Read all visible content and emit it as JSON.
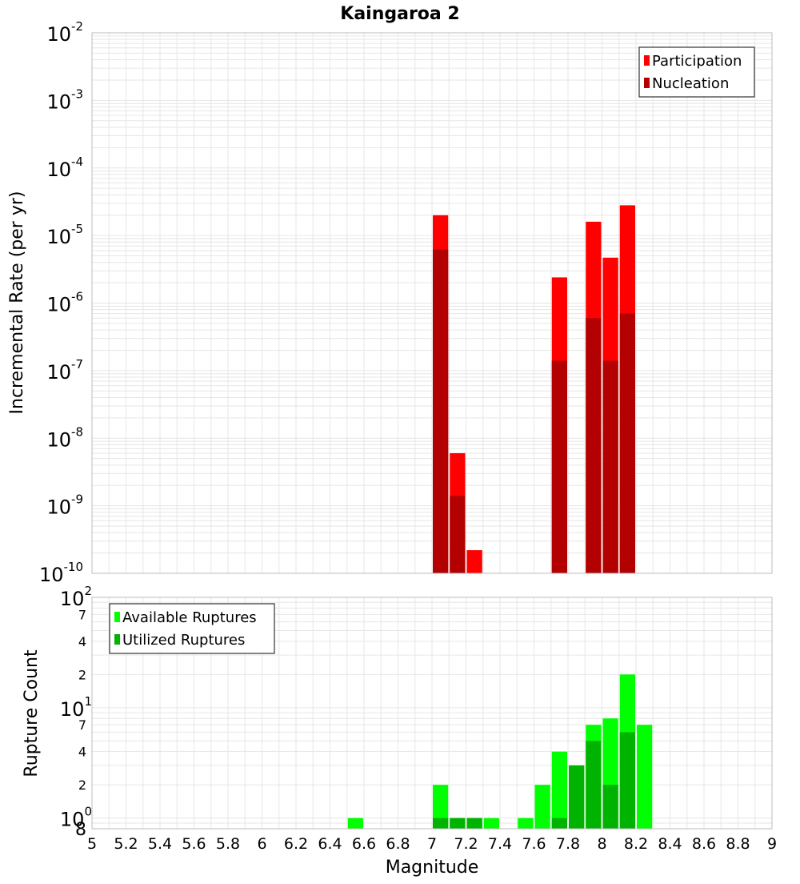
{
  "title": "Kaingaroa 2",
  "xlabel": "Magnitude",
  "colors": {
    "participation": "#ff0000",
    "nucleation": "#b30000",
    "available": "#00ff00",
    "utilized": "#00b300",
    "grid": "#e6e6e6",
    "frame": "#bdbdbd"
  },
  "chart_data": [
    {
      "type": "bar",
      "title": "Kaingaroa 2",
      "xlabel": "",
      "ylabel": "Incremental Rate (per yr)",
      "yscale": "log",
      "xlim": [
        5,
        9
      ],
      "ylim": [
        1e-10,
        0.01
      ],
      "grid": true,
      "legend_position": "top-right",
      "bin_width": 0.1,
      "y_tick_labels": [
        {
          "base": "10",
          "exp": "-10",
          "value": 1e-10
        },
        {
          "base": "10",
          "exp": "-9",
          "value": 1e-09
        },
        {
          "base": "10",
          "exp": "-8",
          "value": 1e-08
        },
        {
          "base": "10",
          "exp": "-7",
          "value": 1e-07
        },
        {
          "base": "10",
          "exp": "-6",
          "value": 1e-06
        },
        {
          "base": "10",
          "exp": "-5",
          "value": 1e-05
        },
        {
          "base": "10",
          "exp": "-4",
          "value": 0.0001
        },
        {
          "base": "10",
          "exp": "-3",
          "value": 0.001
        },
        {
          "base": "10",
          "exp": "-2",
          "value": 0.01
        }
      ],
      "series": [
        {
          "name": "Participation",
          "color": "#ff0000",
          "points": [
            {
              "x": 7.05,
              "y": 2e-05
            },
            {
              "x": 7.15,
              "y": 6e-09
            },
            {
              "x": 7.25,
              "y": 2.2e-10
            },
            {
              "x": 7.75,
              "y": 2.4e-06
            },
            {
              "x": 7.95,
              "y": 1.6e-05
            },
            {
              "x": 8.05,
              "y": 4.7e-06
            },
            {
              "x": 8.15,
              "y": 2.8e-05
            }
          ]
        },
        {
          "name": "Nucleation",
          "color": "#b30000",
          "points": [
            {
              "x": 7.05,
              "y": 6.2e-06
            },
            {
              "x": 7.15,
              "y": 1.4e-09
            },
            {
              "x": 7.75,
              "y": 1.4e-07
            },
            {
              "x": 7.95,
              "y": 6e-07
            },
            {
              "x": 8.05,
              "y": 1.4e-07
            },
            {
              "x": 8.15,
              "y": 7e-07
            }
          ]
        }
      ]
    },
    {
      "type": "bar",
      "title": "",
      "xlabel": "Magnitude",
      "ylabel": "Rupture Count",
      "yscale": "log",
      "xlim": [
        5,
        9
      ],
      "ylim": [
        0.8,
        100
      ],
      "grid": true,
      "legend_position": "top-left",
      "bin_width": 0.1,
      "x_ticks": [
        "5",
        "5.2",
        "5.4",
        "5.6",
        "5.8",
        "6",
        "6.2",
        "6.4",
        "6.6",
        "6.8",
        "7",
        "7.2",
        "7.4",
        "7.6",
        "7.8",
        "8",
        "8.2",
        "8.4",
        "8.6",
        "8.8",
        "9"
      ],
      "y_major_labels": [
        {
          "base": "10",
          "exp": "0",
          "value": 1
        },
        {
          "base": "10",
          "exp": "1",
          "value": 10
        },
        {
          "base": "10",
          "exp": "2",
          "value": 100
        }
      ],
      "y_minor_labels": [
        {
          "label": "8",
          "value": 0.8
        },
        {
          "label": "2",
          "value": 2
        },
        {
          "label": "4",
          "value": 4
        },
        {
          "label": "7",
          "value": 7
        },
        {
          "label": "2",
          "value": 20
        },
        {
          "label": "4",
          "value": 40
        },
        {
          "label": "7",
          "value": 70
        }
      ],
      "series": [
        {
          "name": "Available Ruptures",
          "color": "#00ff00",
          "points": [
            {
              "x": 6.55,
              "y": 1
            },
            {
              "x": 7.05,
              "y": 2
            },
            {
              "x": 7.15,
              "y": 1
            },
            {
              "x": 7.25,
              "y": 1
            },
            {
              "x": 7.35,
              "y": 1
            },
            {
              "x": 7.55,
              "y": 1
            },
            {
              "x": 7.65,
              "y": 2
            },
            {
              "x": 7.75,
              "y": 4
            },
            {
              "x": 7.85,
              "y": 3
            },
            {
              "x": 7.95,
              "y": 7
            },
            {
              "x": 8.05,
              "y": 8
            },
            {
              "x": 8.15,
              "y": 20
            },
            {
              "x": 8.25,
              "y": 7
            }
          ]
        },
        {
          "name": "Utilized Ruptures",
          "color": "#00b300",
          "points": [
            {
              "x": 7.05,
              "y": 1
            },
            {
              "x": 7.15,
              "y": 1
            },
            {
              "x": 7.25,
              "y": 1
            },
            {
              "x": 7.75,
              "y": 1
            },
            {
              "x": 7.85,
              "y": 3
            },
            {
              "x": 7.95,
              "y": 5
            },
            {
              "x": 8.05,
              "y": 2
            },
            {
              "x": 8.15,
              "y": 6
            }
          ]
        }
      ]
    }
  ]
}
